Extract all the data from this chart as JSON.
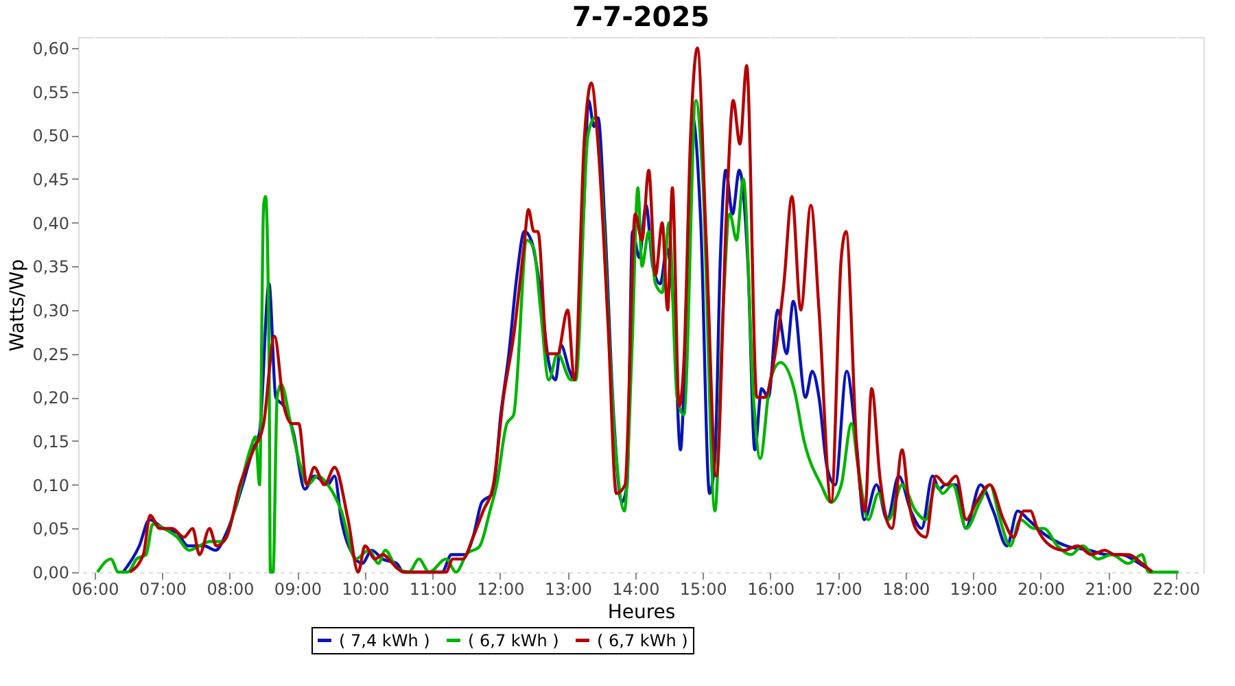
{
  "chart_data": {
    "type": "line",
    "title": "7-7-2025",
    "xlabel": "Heures",
    "ylabel": "Watts/Wp",
    "xlim": [
      5.756,
      22.41
    ],
    "ylim": [
      0,
      0.6125
    ],
    "xticks": [
      {
        "value": 6,
        "label": "06:00"
      },
      {
        "value": 7,
        "label": "07:00"
      },
      {
        "value": 8,
        "label": "08:00"
      },
      {
        "value": 9,
        "label": "09:00"
      },
      {
        "value": 10,
        "label": "10:00"
      },
      {
        "value": 11,
        "label": "11:00"
      },
      {
        "value": 12,
        "label": "12:00"
      },
      {
        "value": 13,
        "label": "13:00"
      },
      {
        "value": 14,
        "label": "14:00"
      },
      {
        "value": 15,
        "label": "15:00"
      },
      {
        "value": 16,
        "label": "16:00"
      },
      {
        "value": 17,
        "label": "17:00"
      },
      {
        "value": 18,
        "label": "18:00"
      },
      {
        "value": 19,
        "label": "19:00"
      },
      {
        "value": 20,
        "label": "20:00"
      },
      {
        "value": 21,
        "label": "21:00"
      },
      {
        "value": 22,
        "label": "22:00"
      }
    ],
    "yticks": [
      {
        "value": 0,
        "label": "0,00"
      },
      {
        "value": 0.05,
        "label": "0,05"
      },
      {
        "value": 0.1,
        "label": "0,10"
      },
      {
        "value": 0.15,
        "label": "0,15"
      },
      {
        "value": 0.2,
        "label": "0,20"
      },
      {
        "value": 0.25,
        "label": "0,25"
      },
      {
        "value": 0.3,
        "label": "0,30"
      },
      {
        "value": 0.35,
        "label": "0,35"
      },
      {
        "value": 0.4,
        "label": "0,40"
      },
      {
        "value": 0.45,
        "label": "0,45"
      },
      {
        "value": 0.5,
        "label": "0,50"
      },
      {
        "value": 0.55,
        "label": "0,55"
      },
      {
        "value": 0.6,
        "label": "0,60"
      }
    ],
    "grid": true,
    "legend": "bottom",
    "line_style": "solid",
    "series": [
      {
        "name": "( 7,4 kWh )",
        "color": "#0a14b4",
        "x": [
          6.42,
          6.66,
          6.81,
          7.02,
          7.22,
          7.38,
          7.62,
          7.79,
          7.95,
          8.19,
          8.34,
          8.44,
          8.58,
          8.68,
          8.8,
          8.94,
          9.11,
          9.25,
          9.45,
          9.55,
          9.65,
          9.82,
          9.96,
          10.1,
          10.26,
          10.47,
          10.57,
          11.14,
          11.28,
          11.48,
          11.6,
          11.73,
          11.89,
          12.01,
          12.13,
          12.25,
          12.36,
          12.46,
          12.6,
          12.72,
          12.82,
          12.9,
          13.03,
          13.1,
          13.23,
          13.31,
          13.39,
          13.45,
          13.55,
          13.68,
          13.8,
          13.88,
          13.96,
          14.06,
          14.16,
          14.26,
          14.37,
          14.47,
          14.57,
          14.67,
          14.73,
          14.85,
          14.97,
          15.1,
          15.18,
          15.26,
          15.34,
          15.44,
          15.54,
          15.67,
          15.77,
          15.87,
          15.97,
          16.11,
          16.24,
          16.34,
          16.52,
          16.62,
          16.72,
          16.84,
          16.96,
          17.13,
          17.27,
          17.39,
          17.57,
          17.73,
          17.9,
          18.08,
          18.24,
          18.4,
          18.5,
          18.59,
          18.75,
          18.89,
          19.11,
          19.3,
          19.5,
          19.66,
          19.82,
          20.03,
          20.38,
          20.72,
          20.99,
          21.19,
          21.46,
          21.66
        ],
        "values": [
          0,
          0.03,
          0.06,
          0.05,
          0.045,
          0.03,
          0.03,
          0.025,
          0.045,
          0.1,
          0.14,
          0.16,
          0.33,
          0.2,
          0.19,
          0.16,
          0.095,
          0.11,
          0.1,
          0.11,
          0.06,
          0.02,
          0.01,
          0.025,
          0.015,
          0.01,
          0,
          0,
          0.02,
          0.02,
          0.04,
          0.08,
          0.09,
          0.18,
          0.25,
          0.34,
          0.39,
          0.38,
          0.32,
          0.24,
          0.22,
          0.26,
          0.23,
          0.22,
          0.4,
          0.54,
          0.51,
          0.52,
          0.4,
          0.18,
          0.08,
          0.1,
          0.39,
          0.36,
          0.42,
          0.35,
          0.33,
          0.37,
          0.3,
          0.14,
          0.23,
          0.52,
          0.4,
          0.09,
          0.13,
          0.36,
          0.46,
          0.41,
          0.46,
          0.35,
          0.14,
          0.21,
          0.2,
          0.3,
          0.25,
          0.31,
          0.2,
          0.23,
          0.2,
          0.12,
          0.1,
          0.23,
          0.15,
          0.06,
          0.1,
          0.06,
          0.11,
          0.07,
          0.05,
          0.11,
          0.095,
          0.1,
          0.1,
          0.05,
          0.1,
          0.07,
          0.03,
          0.07,
          0.06,
          0.045,
          0.03,
          0.025,
          0.02,
          0.02,
          0.01,
          0
        ]
      },
      {
        "name": "( 6,7 kWh )",
        "color": "#00b400",
        "x": [
          6.04,
          6.24,
          6.35,
          6.49,
          6.62,
          6.76,
          6.86,
          7.02,
          7.22,
          7.4,
          7.55,
          7.7,
          7.9,
          8.1,
          8.3,
          8.38,
          8.44,
          8.5,
          8.53,
          8.58,
          8.6,
          8.64,
          8.7,
          8.76,
          8.9,
          9.05,
          9.15,
          9.3,
          9.45,
          9.65,
          9.86,
          10.06,
          10.2,
          10.3,
          10.47,
          10.65,
          10.8,
          10.95,
          11.2,
          11.35,
          11.5,
          11.7,
          11.85,
          11.95,
          12.1,
          12.2,
          12.4,
          12.5,
          12.6,
          12.72,
          12.85,
          13.05,
          13.12,
          13.3,
          13.4,
          13.5,
          13.7,
          13.84,
          13.95,
          14.04,
          14.1,
          14.2,
          14.3,
          14.4,
          14.5,
          14.62,
          14.72,
          14.9,
          15.0,
          15.18,
          15.3,
          15.4,
          15.5,
          15.6,
          15.75,
          15.85,
          16.0,
          16.15,
          16.35,
          16.5,
          16.75,
          16.9,
          17.05,
          17.2,
          17.3,
          17.45,
          17.6,
          17.75,
          17.95,
          18.15,
          18.3,
          18.45,
          18.55,
          18.7,
          18.9,
          19.1,
          19.25,
          19.4,
          19.55,
          19.7,
          19.9,
          20.05,
          20.25,
          20.45,
          20.62,
          20.85,
          21.05,
          21.3,
          21.5,
          21.6,
          22.04
        ],
        "values": [
          0,
          0.015,
          0,
          0,
          0.015,
          0.02,
          0.055,
          0.05,
          0.04,
          0.025,
          0.03,
          0.035,
          0.035,
          0.08,
          0.14,
          0.155,
          0.1,
          0.42,
          0.43,
          0.25,
          0,
          0,
          0.2,
          0.215,
          0.17,
          0.12,
          0.1,
          0.11,
          0.1,
          0.07,
          0.015,
          0.025,
          0.01,
          0.025,
          0.005,
          0,
          0.015,
          0,
          0.015,
          0,
          0.02,
          0.03,
          0.07,
          0.1,
          0.17,
          0.18,
          0.38,
          0.37,
          0.3,
          0.22,
          0.25,
          0.22,
          0.22,
          0.5,
          0.52,
          0.44,
          0.15,
          0.07,
          0.25,
          0.44,
          0.35,
          0.39,
          0.33,
          0.32,
          0.4,
          0.2,
          0.18,
          0.54,
          0.45,
          0.07,
          0.3,
          0.41,
          0.38,
          0.45,
          0.2,
          0.13,
          0.22,
          0.24,
          0.21,
          0.15,
          0.1,
          0.08,
          0.1,
          0.17,
          0.12,
          0.06,
          0.09,
          0.06,
          0.1,
          0.07,
          0.06,
          0.1,
          0.09,
          0.1,
          0.05,
          0.08,
          0.1,
          0.06,
          0.03,
          0.06,
          0.05,
          0.05,
          0.03,
          0.02,
          0.03,
          0.015,
          0.02,
          0.01,
          0.02,
          0,
          0
        ]
      },
      {
        "name": "( 6,7 kWh )",
        "color": "#b40000",
        "x": [
          6.52,
          6.72,
          6.82,
          6.96,
          7.15,
          7.32,
          7.45,
          7.55,
          7.7,
          7.8,
          7.95,
          8.15,
          8.35,
          8.5,
          8.66,
          8.8,
          8.92,
          9.02,
          9.14,
          9.25,
          9.4,
          9.55,
          9.75,
          9.9,
          10.0,
          10.15,
          10.26,
          10.47,
          10.57,
          11.2,
          11.3,
          11.45,
          11.6,
          11.75,
          11.9,
          12.05,
          12.2,
          12.35,
          12.42,
          12.5,
          12.56,
          12.7,
          12.85,
          13.0,
          13.1,
          13.25,
          13.35,
          13.45,
          13.6,
          13.72,
          13.85,
          14.0,
          14.1,
          14.2,
          14.3,
          14.4,
          14.48,
          14.55,
          14.65,
          14.72,
          14.82,
          14.92,
          15.05,
          15.2,
          15.35,
          15.45,
          15.55,
          15.65,
          15.8,
          15.92,
          16.05,
          16.2,
          16.32,
          16.45,
          16.6,
          16.72,
          16.9,
          17.05,
          17.12,
          17.28,
          17.4,
          17.5,
          17.62,
          17.72,
          17.8,
          17.95,
          18.05,
          18.15,
          18.3,
          18.45,
          18.6,
          18.75,
          18.9,
          19.05,
          19.25,
          19.45,
          19.6,
          19.75,
          19.85,
          19.95,
          20.15,
          20.35,
          20.55,
          20.75,
          20.95,
          21.1,
          21.3,
          21.5,
          21.65
        ],
        "values": [
          0,
          0.02,
          0.065,
          0.05,
          0.05,
          0.04,
          0.05,
          0.02,
          0.05,
          0.03,
          0.04,
          0.1,
          0.14,
          0.17,
          0.27,
          0.19,
          0.17,
          0.17,
          0.1,
          0.12,
          0.1,
          0.12,
          0.06,
          0,
          0.03,
          0.015,
          0.02,
          0.005,
          0,
          0,
          0.015,
          0.015,
          0.04,
          0.07,
          0.1,
          0.2,
          0.27,
          0.37,
          0.415,
          0.39,
          0.39,
          0.25,
          0.25,
          0.3,
          0.22,
          0.5,
          0.56,
          0.49,
          0.28,
          0.09,
          0.1,
          0.41,
          0.38,
          0.46,
          0.34,
          0.4,
          0.3,
          0.44,
          0.19,
          0.24,
          0.5,
          0.6,
          0.38,
          0.11,
          0.41,
          0.54,
          0.49,
          0.58,
          0.2,
          0.2,
          0.24,
          0.33,
          0.43,
          0.3,
          0.42,
          0.3,
          0.08,
          0.36,
          0.39,
          0.14,
          0.07,
          0.21,
          0.11,
          0.06,
          0.05,
          0.14,
          0.08,
          0.05,
          0.04,
          0.11,
          0.1,
          0.11,
          0.06,
          0.08,
          0.1,
          0.06,
          0.04,
          0.07,
          0.07,
          0.05,
          0.03,
          0.025,
          0.03,
          0.02,
          0.025,
          0.02,
          0.02,
          0.01,
          0
        ]
      }
    ]
  }
}
